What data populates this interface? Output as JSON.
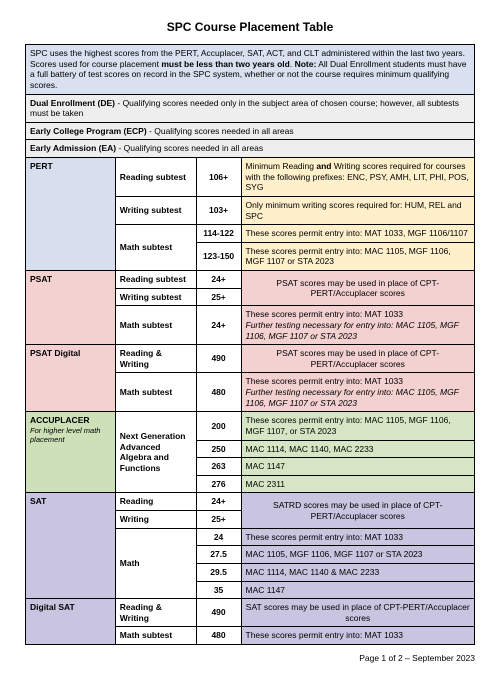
{
  "title": "SPC Course Placement Table",
  "intro_html": "SPC uses the highest scores from the PERT, Accuplacer, SAT, ACT, and CLT administered within the last two years. Scores used for course placement <b>must be less than two years old</b>. <b>Note:</b> All Dual Enrollment students must have a full battery of test scores on record in the SPC system, whether or not the course requires minimum qualifying scores.",
  "de_html": "<b>Dual Enrollment (DE)</b> - Qualifying scores needed only in the subject area of chosen course; however, all subtests must be taken",
  "ecp_html": "<b>Early College Program (ECP)</b> - Qualifying scores needed in all areas",
  "ea_html": "<b>Early Admission (EA)</b> - Qualifying scores needed in all areas",
  "pert": {
    "name": "PERT",
    "reading": {
      "label": "Reading subtest",
      "score": "106+"
    },
    "writing": {
      "label": "Writing subtest",
      "score": "103+"
    },
    "desc1_html": "Minimum Reading <b>and</b> Writing scores required for courses with the following prefixes: ENC, PSY, AMH, LIT, PHI, POS, SYG",
    "desc2": "Only minimum writing scores required for: HUM, REL and SPC",
    "math": {
      "label": "Math subtest",
      "r1": {
        "score": "114-122",
        "desc": "These scores permit entry into:\nMAT 1033, MGF 1106/1107"
      },
      "r2": {
        "score": "123-150",
        "desc": "These scores permit entry into:\nMAC 1105, MGF 1106, MGF 1107 or STA 2023"
      }
    }
  },
  "psat": {
    "name": "PSAT",
    "reading": {
      "label": "Reading subtest",
      "score": "24+"
    },
    "writing": {
      "label": "Writing subtest",
      "score": "25+"
    },
    "note": "PSAT scores may be used in place of\nCPT-PERT/Accuplacer scores",
    "math": {
      "label": "Math subtest",
      "score": "24+",
      "desc_html": "These scores permit entry into: MAT 1033<br><i>Further testing necessary for entry into: MAC 1105, MGF 1106, MGF 1107 or STA 2023</i>"
    }
  },
  "psatd": {
    "name": "PSAT Digital",
    "rw": {
      "label": "Reading & Writing",
      "score": "490"
    },
    "note": "PSAT scores may be used in place of\nCPT-PERT/Accuplacer scores",
    "math": {
      "label": "Math subtest",
      "score": "480",
      "desc_html": "These scores permit entry into: MAT 1033<br><i>Further testing necessary for entry into: MAC 1105, MGF 1106, MGF 1107 or STA 2023</i>"
    }
  },
  "accu": {
    "name": "ACCUPLACER",
    "sub": "For higher level math placement",
    "label": "Next Generation Advanced Algebra and Functions",
    "r1": {
      "score": "200",
      "desc": "These scores permit entry into:\nMAC 1105, MGF 1106, MGF 1107, or STA 2023"
    },
    "r2": {
      "score": "250",
      "desc": "MAC 1114, MAC 1140, MAC 2233"
    },
    "r3": {
      "score": "263",
      "desc": "MAC 1147"
    },
    "r4": {
      "score": "276",
      "desc": "MAC 2311"
    }
  },
  "sat": {
    "name": "SAT",
    "reading": {
      "label": "Reading",
      "score": "24+"
    },
    "writing": {
      "label": "Writing",
      "score": "25+"
    },
    "note": "SATRD scores may be used in place of\nCPT-PERT/Accuplacer scores",
    "math": {
      "label": "Math",
      "r1": {
        "score": "24",
        "desc": "These scores permit entry into: MAT 1033"
      },
      "r2": {
        "score": "27.5",
        "desc": "MAC 1105, MGF 1106, MGF 1107 or STA 2023"
      },
      "r3": {
        "score": "29.5",
        "desc": "MAC 1114, MAC 1140 & MAC 2233"
      },
      "r4": {
        "score": "35",
        "desc": "MAC 1147"
      }
    }
  },
  "dsat": {
    "name": "Digital SAT",
    "rw": {
      "label": "Reading & Writing",
      "score": "490"
    },
    "note": "SAT scores may be used in place of\nCPT-PERT/Accuplacer scores",
    "math": {
      "label": "Math subtest",
      "score": "480",
      "desc": "These scores permit entry into: MAT 1033"
    }
  },
  "footer": "Page 1 of 2 – September 2023"
}
